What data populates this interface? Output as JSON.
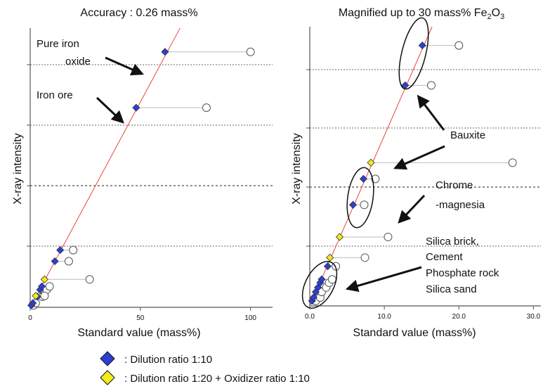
{
  "chart_data": [
    {
      "type": "scatter",
      "title": "Accuracy : 0.26 mass%",
      "xlabel": "Standard value (mass%)",
      "ylabel": "X-ray intensity",
      "xlim": [
        0,
        110
      ],
      "ylim": [
        0,
        100
      ],
      "x_ticks": [
        0,
        50,
        100
      ],
      "x_tick_labels": [
        "0",
        "50",
        "100"
      ],
      "grid": "dotted horizontal",
      "calibration_line": {
        "color": "#e8463c",
        "from": [
          0,
          0
        ],
        "to": [
          68,
          100
        ]
      },
      "series": [
        {
          "kind": "dilution_1_10",
          "marker": "diamond",
          "points": [
            {
              "x": 0.5,
              "y": 0.7,
              "std": 1.5
            },
            {
              "x": 1.2,
              "y": 1.5,
              "std": 2.5
            },
            {
              "x": 3.2,
              "y": 3.8,
              "std": 5.5
            },
            {
              "x": 4.5,
              "y": 6.3,
              "std": 7.5
            },
            {
              "x": 5.3,
              "y": 7.5,
              "std": 8.8
            },
            {
              "x": 11.2,
              "y": 16.5,
              "std": 17.5
            },
            {
              "x": 13.6,
              "y": 20.5,
              "std": 19.5
            },
            {
              "x": 48.1,
              "y": 71.5,
              "std": 80
            },
            {
              "x": 61.2,
              "y": 91.5,
              "std": 100
            }
          ]
        },
        {
          "kind": "dilution_1_20_oxidizer_1_10",
          "marker": "diamond",
          "points": [
            {
              "x": 2.5,
              "y": 4.1,
              "std": 6.5
            },
            {
              "x": 6.5,
              "y": 10.0,
              "std": 27
            }
          ]
        }
      ],
      "annotations": [
        {
          "text_lines": [
            "Pure iron",
            "oxide"
          ]
        },
        {
          "text_lines": [
            "Iron ore"
          ]
        }
      ]
    },
    {
      "type": "scatter",
      "title_prefix": "Magnified up to 30 mass% Fe",
      "title_sub1": "2",
      "title_mid": "O",
      "title_sub2": "3",
      "xlabel": "Standard value (mass%)",
      "ylabel": "X-ray intensity",
      "xlim": [
        0,
        31
      ],
      "ylim": [
        0,
        100
      ],
      "x_ticks": [
        0,
        10,
        20,
        30
      ],
      "x_tick_labels": [
        "0.0",
        "10.0",
        "20.0",
        "30.0"
      ],
      "grid": "dotted horizontal",
      "calibration_line": {
        "color": "#e8463c",
        "from": [
          0,
          0
        ],
        "to": [
          16.4,
          100
        ]
      },
      "series": [
        {
          "kind": "dilution_1_10",
          "marker": "diamond",
          "points": [
            {
              "x": 0.3,
              "y": 1.8,
              "std": 0.8
            },
            {
              "x": 0.5,
              "y": 3.0,
              "std": 1.4
            },
            {
              "x": 0.8,
              "y": 5.0,
              "std": 1.6
            },
            {
              "x": 1.1,
              "y": 6.6,
              "std": 2.2
            },
            {
              "x": 1.4,
              "y": 8.3,
              "std": 2.6
            },
            {
              "x": 1.6,
              "y": 9.5,
              "std": 3.0
            },
            {
              "x": 2.4,
              "y": 14.2,
              "std": 3.5
            },
            {
              "x": 5.8,
              "y": 36.2,
              "std": 7.3
            },
            {
              "x": 7.2,
              "y": 45.5,
              "std": 8.8
            },
            {
              "x": 12.8,
              "y": 79.0,
              "std": 16.3
            },
            {
              "x": 15.1,
              "y": 93.3,
              "std": 20.0
            }
          ]
        },
        {
          "kind": "dilution_1_20_oxidizer_1_10",
          "marker": "diamond",
          "points": [
            {
              "x": 2.7,
              "y": 17.3,
              "std": 7.4
            },
            {
              "x": 4.0,
              "y": 24.7,
              "std": 10.5
            },
            {
              "x": 8.2,
              "y": 51.3,
              "std": 27.2
            }
          ]
        }
      ],
      "annotations": [
        {
          "text_lines": [
            "Bauxite"
          ]
        },
        {
          "text_lines": [
            "Chrome",
            "-magnesia"
          ]
        },
        {
          "text_lines": [
            "Silica brick,",
            "Cement",
            "Phosphate rock",
            "Silica sand"
          ]
        }
      ]
    }
  ],
  "legend": {
    "items": [
      {
        "label": ": Dilution ratio 1:10",
        "color": "#2b3fd6"
      },
      {
        "label": ": Dilution ratio 1:20 + Oxidizer ratio 1:10",
        "color": "#f2ec1a"
      }
    ]
  },
  "colors": {
    "blue_marker": "#2b3fd6",
    "yellow_marker": "#f2ec1a",
    "open_marker_stroke": "#555555",
    "calibration_line": "#e8463c",
    "connector": "#bbbbbb"
  }
}
